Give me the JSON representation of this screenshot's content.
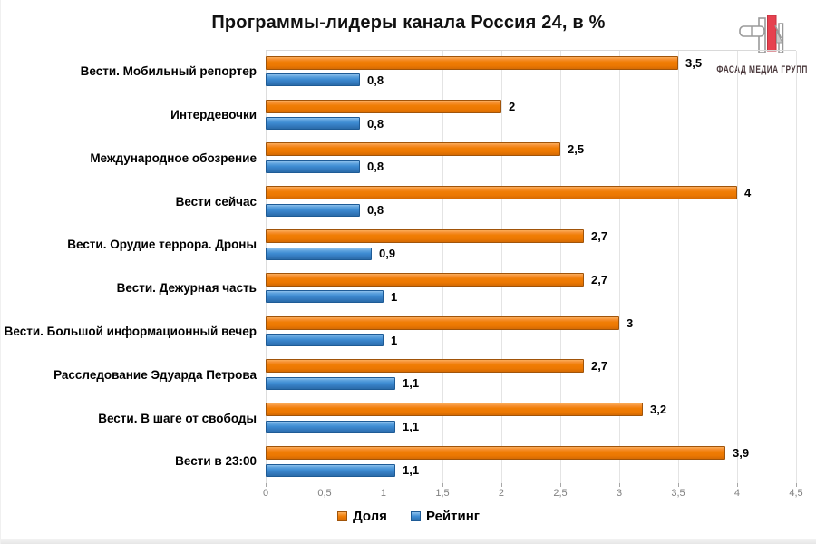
{
  "title": "Программы-лидеры канала Россия 24, в %",
  "logo": {
    "text": "ФАСАД МЕДИА ГРУПП",
    "red": "#E23C4E",
    "gray": "#9A9A9A",
    "text_color": "#4A383B"
  },
  "chart_data": {
    "type": "bar",
    "orientation": "horizontal",
    "title": "Программы-лидеры канала Россия 24, в %",
    "categories": [
      "Вести. Мобильный репортер",
      "Интердевочки",
      "Международное обозрение",
      "Вести сейчас",
      "Вести. Орудие террора. Дроны",
      "Вести. Дежурная часть",
      "Вести. Большой информационный вечер",
      "Расследование Эдуарда Петрова",
      "Вести. В шаге от свободы",
      "Вести в 23:00"
    ],
    "series": [
      {
        "name": "Доля",
        "color": "#F07D05",
        "values": [
          3.5,
          2,
          2.5,
          4,
          2.7,
          2.7,
          3,
          2.7,
          3.2,
          3.9
        ],
        "labels": [
          "3,5",
          "2",
          "2,5",
          "4",
          "2,7",
          "2,7",
          "3",
          "2,7",
          "3,2",
          "3,9"
        ]
      },
      {
        "name": "Рейтинг",
        "color": "#3E8CD3",
        "values": [
          0.8,
          0.8,
          0.8,
          0.8,
          0.9,
          1,
          1,
          1.1,
          1.1,
          1.1
        ],
        "labels": [
          "0,8",
          "0,8",
          "0,8",
          "0,8",
          "0,9",
          "1",
          "1",
          "1,1",
          "1,1",
          "1,1"
        ]
      }
    ],
    "xlim": [
      0,
      4.5
    ],
    "ticks": [
      "0",
      "0,5",
      "1",
      "1,5",
      "2",
      "2,5",
      "3",
      "3,5",
      "4",
      "4,5"
    ],
    "tick_values": [
      0,
      0.5,
      1,
      1.5,
      2,
      2.5,
      3,
      3.5,
      4,
      4.5
    ],
    "grid": true,
    "legend_position": "bottom"
  }
}
